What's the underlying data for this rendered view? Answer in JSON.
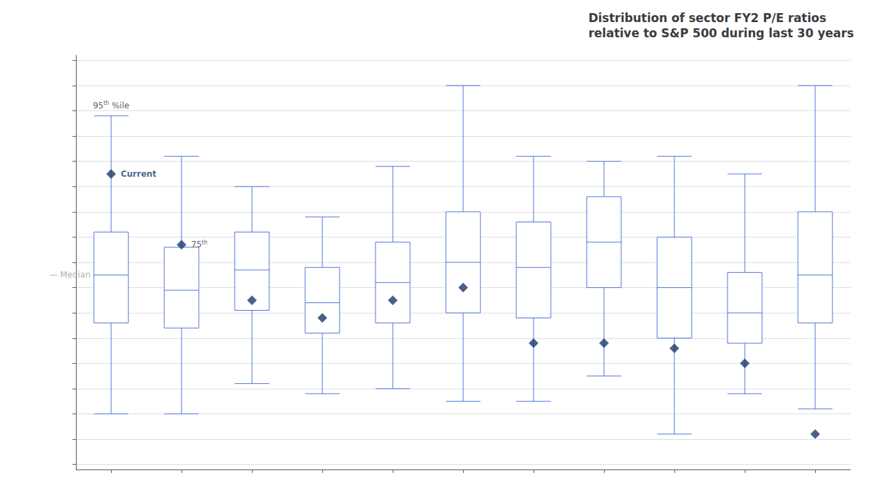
{
  "chart_data": {
    "type": "boxplot",
    "title": "Distribution of sector FY2 P/E ratios\nrelative to S&P 500 during last 30 years",
    "categories": [
      null,
      null,
      null,
      null,
      null,
      null,
      null,
      null,
      null,
      null,
      null
    ],
    "series": [
      {
        "type": "boxplot",
        "p95": [
          1.68,
          1.52,
          1.4,
          1.28,
          1.48,
          1.8,
          1.52,
          1.5,
          1.52,
          1.45,
          1.8
        ],
        "q75": [
          1.22,
          1.16,
          1.22,
          1.08,
          1.18,
          1.3,
          1.26,
          1.36,
          1.2,
          1.06,
          1.3
        ],
        "median": [
          1.05,
          0.99,
          1.07,
          0.94,
          1.02,
          1.1,
          1.08,
          1.18,
          1.0,
          0.9,
          1.05
        ],
        "q25": [
          0.86,
          0.84,
          0.91,
          0.82,
          0.86,
          0.9,
          0.88,
          1.0,
          0.8,
          0.78,
          0.86
        ],
        "p5": [
          0.5,
          0.5,
          0.62,
          0.58,
          0.6,
          0.55,
          0.55,
          0.65,
          0.42,
          0.58,
          0.52
        ]
      },
      {
        "type": "scatter",
        "marker": "diamond",
        "color": "#1b3a6b",
        "values": [
          1.45,
          1.17,
          0.95,
          0.88,
          0.95,
          1.0,
          0.78,
          0.78,
          0.76,
          0.7,
          0.42
        ]
      }
    ],
    "annotations": [
      "95th %ile",
      "Current",
      "75th",
      "— Median"
    ],
    "ylim": [
      0.28,
      1.92
    ],
    "yticks": [
      0.3,
      0.4,
      0.5,
      0.6,
      0.7,
      0.8,
      0.9,
      1.0,
      1.1,
      1.2,
      1.3,
      1.4,
      1.5,
      1.6,
      1.7,
      1.8,
      1.9
    ],
    "grid": true,
    "tick_labels": false
  }
}
